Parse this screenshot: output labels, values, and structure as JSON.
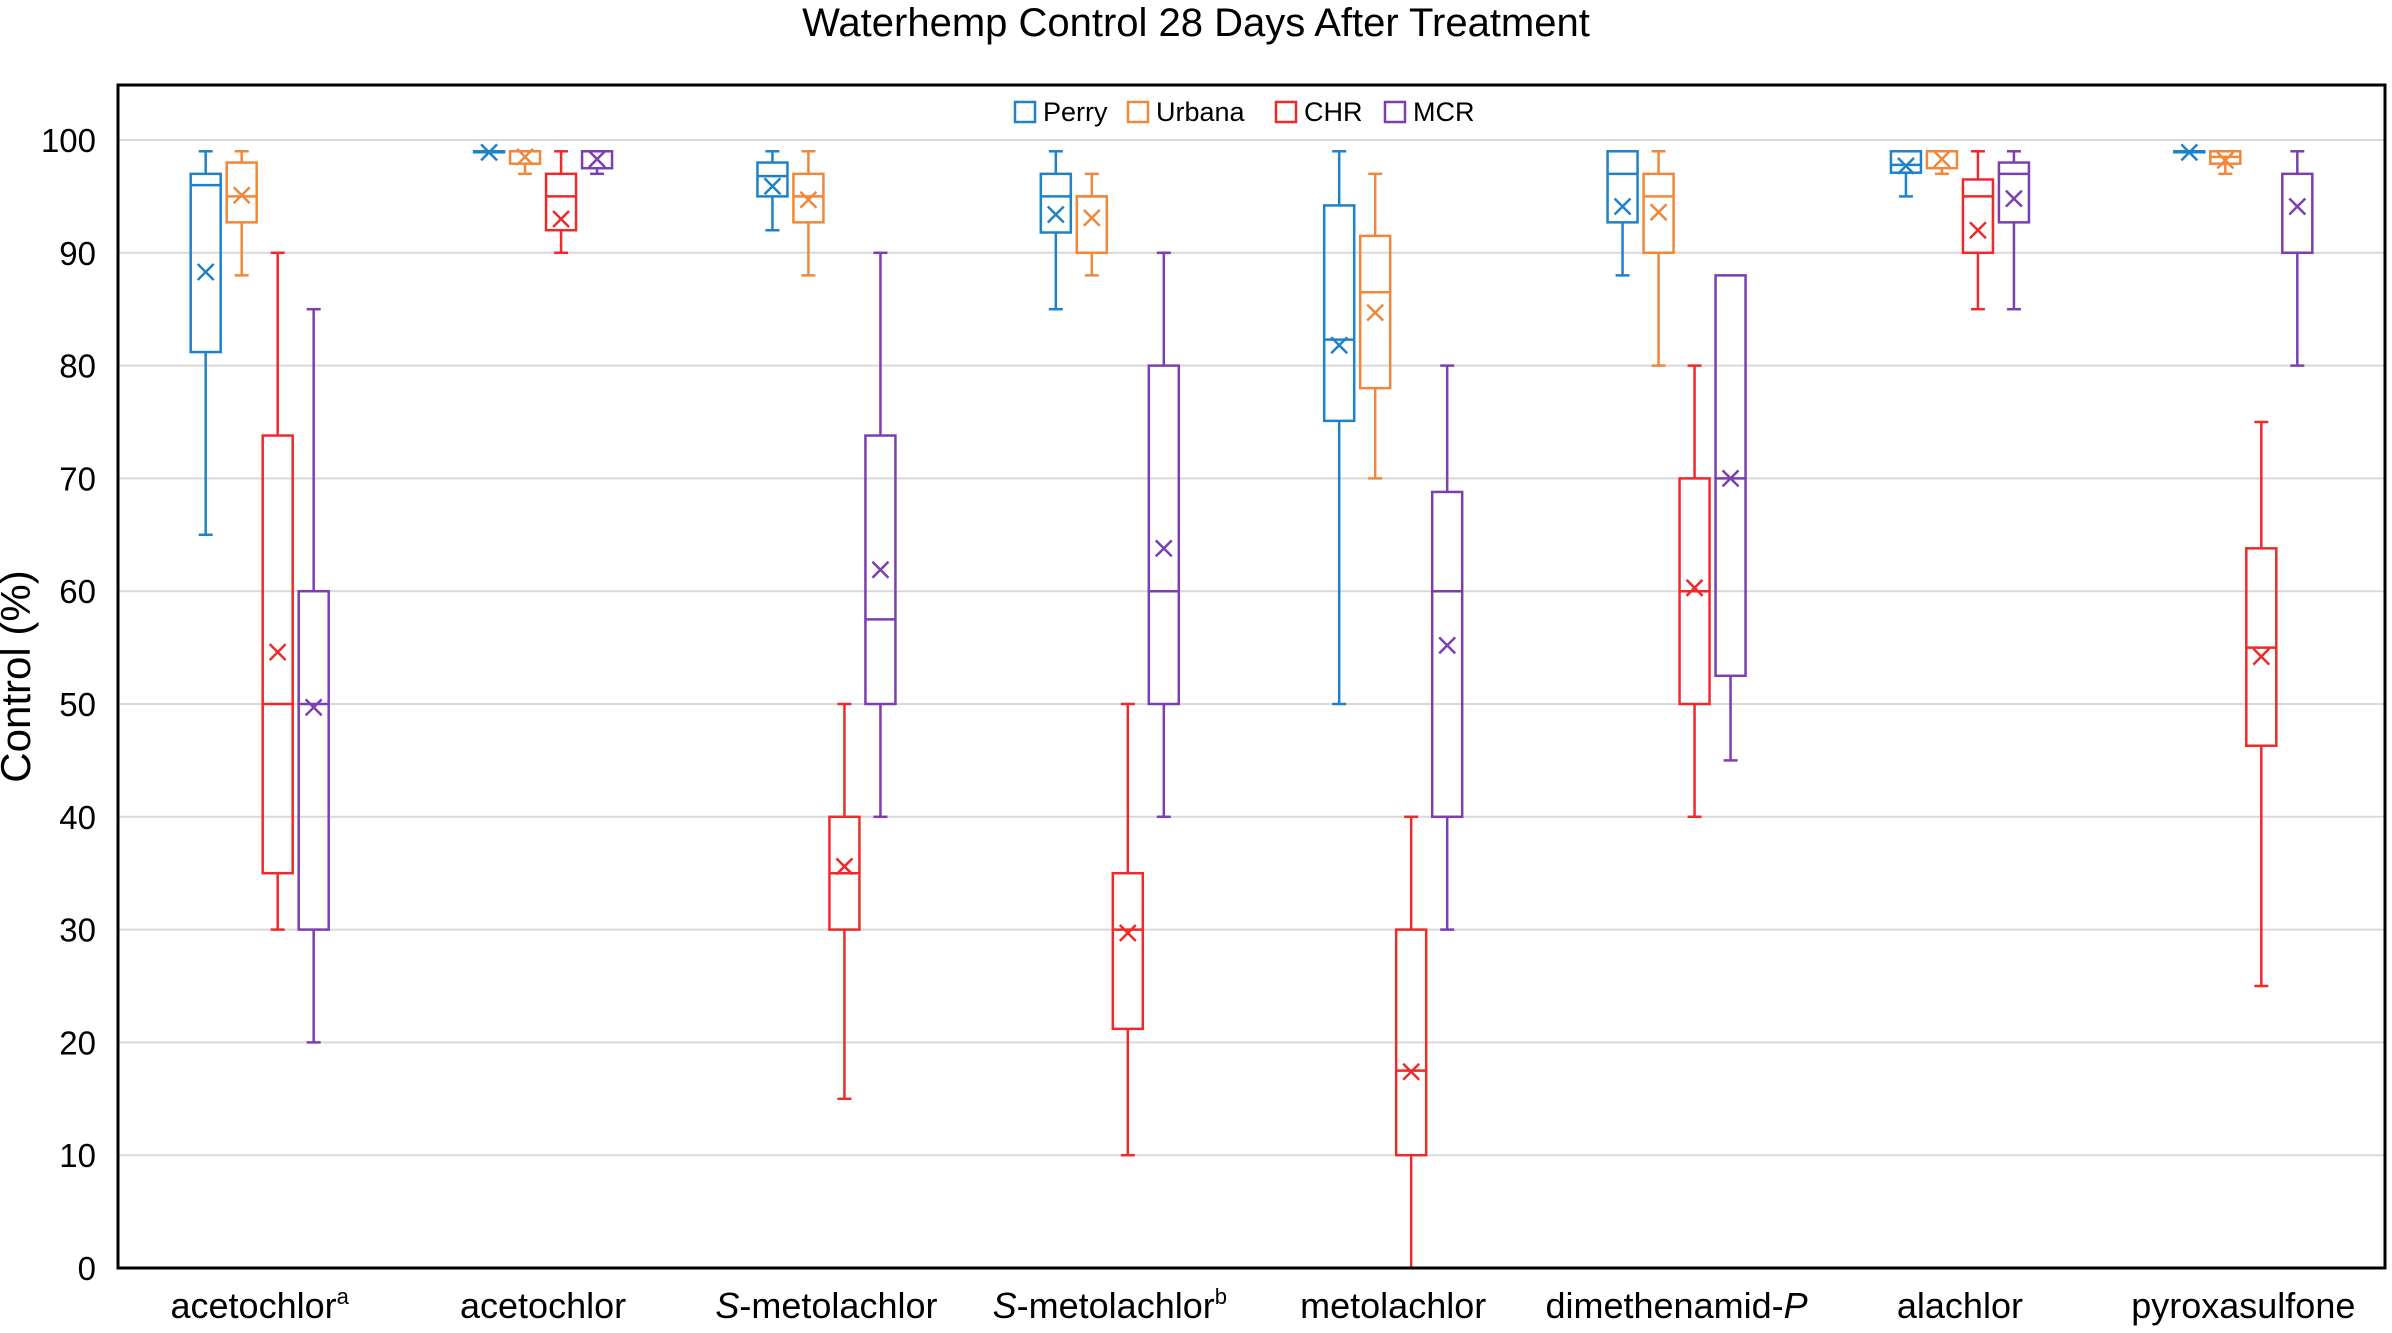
{
  "chart_data": {
    "type": "box",
    "title": "Waterhemp Control 28 Days After Treatment",
    "ylabel": "Control (%)",
    "xlabel": "",
    "ylim": [
      0,
      100
    ],
    "yticks": [
      0,
      10,
      20,
      30,
      40,
      50,
      60,
      70,
      80,
      90,
      100
    ],
    "grid": true,
    "legend_position": "top-center",
    "categories": [
      {
        "text": "acetochlor",
        "sup": "a"
      },
      {
        "text": "acetochlor",
        "sup": ""
      },
      {
        "prefix": "S",
        "text": "-metolachlor",
        "sup": ""
      },
      {
        "prefix": "S",
        "text": "-metolachlor",
        "sup": "b"
      },
      {
        "text": "metolachlor",
        "sup": ""
      },
      {
        "text": "dimethenamid-",
        "suffix": "P",
        "sup": ""
      },
      {
        "text": "alachlor",
        "sup": ""
      },
      {
        "text": "pyroxasulfone",
        "sup": ""
      }
    ],
    "series": [
      {
        "name": "Perry",
        "color": "#1f82c9",
        "boxes": [
          {
            "min": 65,
            "q1": 81.2,
            "median": 96,
            "q3": 97,
            "max": 99,
            "mean": 88.3
          },
          {
            "min": 99,
            "q1": 99,
            "median": 99,
            "q3": 99,
            "max": 99,
            "mean": 98.9
          },
          {
            "min": 92,
            "q1": 95,
            "median": 96.8,
            "q3": 98,
            "max": 99,
            "mean": 95.9
          },
          {
            "min": 85,
            "q1": 91.8,
            "median": 95,
            "q3": 97,
            "max": 99,
            "mean": 93.4
          },
          {
            "min": 50,
            "q1": 75.1,
            "median": 82.3,
            "q3": 94.2,
            "max": 99,
            "mean": 81.8
          },
          {
            "min": 88,
            "q1": 92.7,
            "median": 97,
            "q3": 99,
            "max": 99,
            "mean": 94.1
          },
          {
            "min": 95,
            "q1": 97.1,
            "median": 97.8,
            "q3": 99,
            "max": 99,
            "mean": 97.7
          },
          {
            "min": 99,
            "q1": 99,
            "median": 99,
            "q3": 99,
            "max": 99,
            "mean": 98.9
          }
        ]
      },
      {
        "name": "Urbana",
        "color": "#f0883c",
        "boxes": [
          {
            "min": 88,
            "q1": 92.7,
            "median": 95,
            "q3": 98,
            "max": 99,
            "mean": 95.1
          },
          {
            "min": 97,
            "q1": 97.9,
            "median": 99,
            "q3": 99,
            "max": 99,
            "mean": 98.5
          },
          {
            "min": 88,
            "q1": 92.7,
            "median": 95,
            "q3": 97,
            "max": 99,
            "mean": 94.7
          },
          {
            "min": 88,
            "q1": 90,
            "median": 95,
            "q3": 95,
            "max": 97,
            "mean": 93.1
          },
          {
            "min": 70,
            "q1": 78,
            "median": 86.5,
            "q3": 91.5,
            "max": 97,
            "mean": 84.7
          },
          {
            "min": 80,
            "q1": 90,
            "median": 95,
            "q3": 97,
            "max": 99,
            "mean": 93.6
          },
          {
            "min": 97,
            "q1": 97.5,
            "median": 99,
            "q3": 99,
            "max": 99,
            "mean": 98.3
          },
          {
            "min": 97,
            "q1": 97.9,
            "median": 98.5,
            "q3": 99,
            "max": 99,
            "mean": 98.2
          }
        ]
      },
      {
        "name": "CHR",
        "color": "#ee2a2a",
        "boxes": [
          {
            "min": 30,
            "q1": 35,
            "median": 50,
            "q3": 73.8,
            "max": 90,
            "mean": 54.6
          },
          {
            "min": 90,
            "q1": 92,
            "median": 95,
            "q3": 97,
            "max": 99,
            "mean": 93
          },
          {
            "min": 15,
            "q1": 30,
            "median": 35,
            "q3": 40,
            "max": 50,
            "mean": 35.6
          },
          {
            "min": 10,
            "q1": 21.2,
            "median": 30,
            "q3": 35,
            "max": 50,
            "mean": 29.7
          },
          {
            "min": 0,
            "q1": 10,
            "median": 17.5,
            "q3": 30,
            "max": 40,
            "mean": 17.4
          },
          {
            "min": 40,
            "q1": 50,
            "median": 60,
            "q3": 70,
            "max": 80,
            "mean": 60.3
          },
          {
            "min": 85,
            "q1": 90,
            "median": 95,
            "q3": 96.5,
            "max": 99,
            "mean": 92
          },
          {
            "min": 25,
            "q1": 46.3,
            "median": 55,
            "q3": 63.8,
            "max": 75,
            "mean": 54.2
          }
        ]
      },
      {
        "name": "MCR",
        "color": "#7b3fb0",
        "boxes": [
          {
            "min": 20,
            "q1": 30,
            "median": 50,
            "q3": 60,
            "max": 85,
            "mean": 49.7
          },
          {
            "min": 97,
            "q1": 97.5,
            "median": 99,
            "q3": 99,
            "max": 99,
            "mean": 98.3
          },
          {
            "min": 40,
            "q1": 50,
            "median": 57.5,
            "q3": 73.8,
            "max": 90,
            "mean": 61.9
          },
          {
            "min": 40,
            "q1": 50,
            "median": 60,
            "q3": 80,
            "max": 90,
            "mean": 63.8
          },
          {
            "min": 30,
            "q1": 40,
            "median": 60,
            "q3": 68.8,
            "max": 80,
            "mean": 55.2
          },
          {
            "min": 45,
            "q1": 52.5,
            "median": 70,
            "q3": 88,
            "max": 88,
            "mean": 70
          },
          {
            "min": 85,
            "q1": 92.7,
            "median": 97,
            "q3": 98,
            "max": 99,
            "mean": 94.8
          },
          {
            "min": 80,
            "q1": 90,
            "median": 90,
            "q3": 97,
            "max": 99,
            "mean": 94.1
          }
        ]
      }
    ]
  }
}
